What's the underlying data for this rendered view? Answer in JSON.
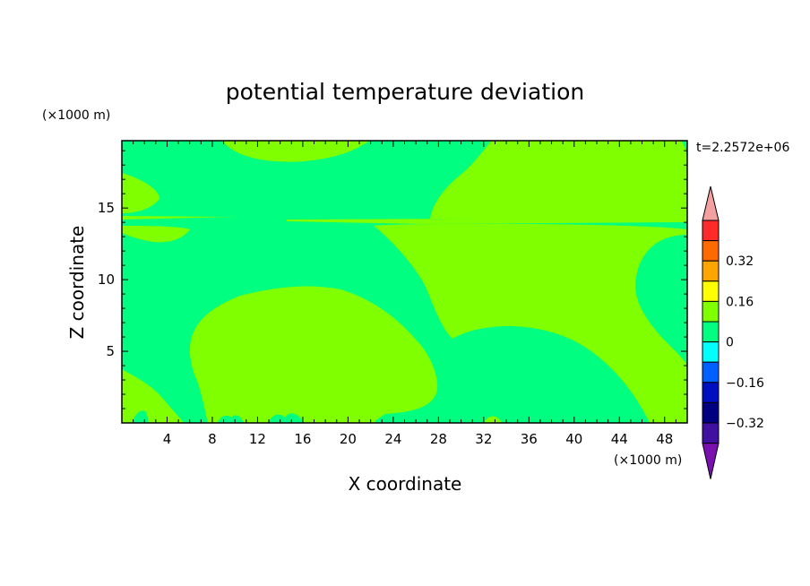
{
  "chart_data": {
    "type": "heatmap",
    "title": "potential temperature deviation",
    "xlabel": "X coordinate",
    "ylabel": "Z coordinate",
    "x_unit": "(×1000 m)",
    "y_unit": "(×1000 m)",
    "time_label": "t=2.2572e+06",
    "xlim": [
      0,
      50
    ],
    "ylim": [
      0,
      19.7
    ],
    "x_ticks": [
      4,
      8,
      12,
      16,
      20,
      24,
      28,
      32,
      36,
      40,
      44,
      48
    ],
    "y_ticks": [
      5,
      10,
      15
    ],
    "colorbar": {
      "labels": [
        "0.32",
        "0.16",
        "0",
        "-0.16",
        "-0.32"
      ],
      "colors": [
        "#F2A0A0",
        "#FF2A2A",
        "#FF6A00",
        "#FFA500",
        "#FFFF00",
        "#80FF00",
        "#00FF80",
        "#00FFFF",
        "#0060FF",
        "#0010C0",
        "#000080",
        "#4010A0",
        "#7A10B0"
      ],
      "field_colors": {
        "near_zero_negative": "#00FF80",
        "near_zero_positive": "#80FF00"
      }
    }
  }
}
